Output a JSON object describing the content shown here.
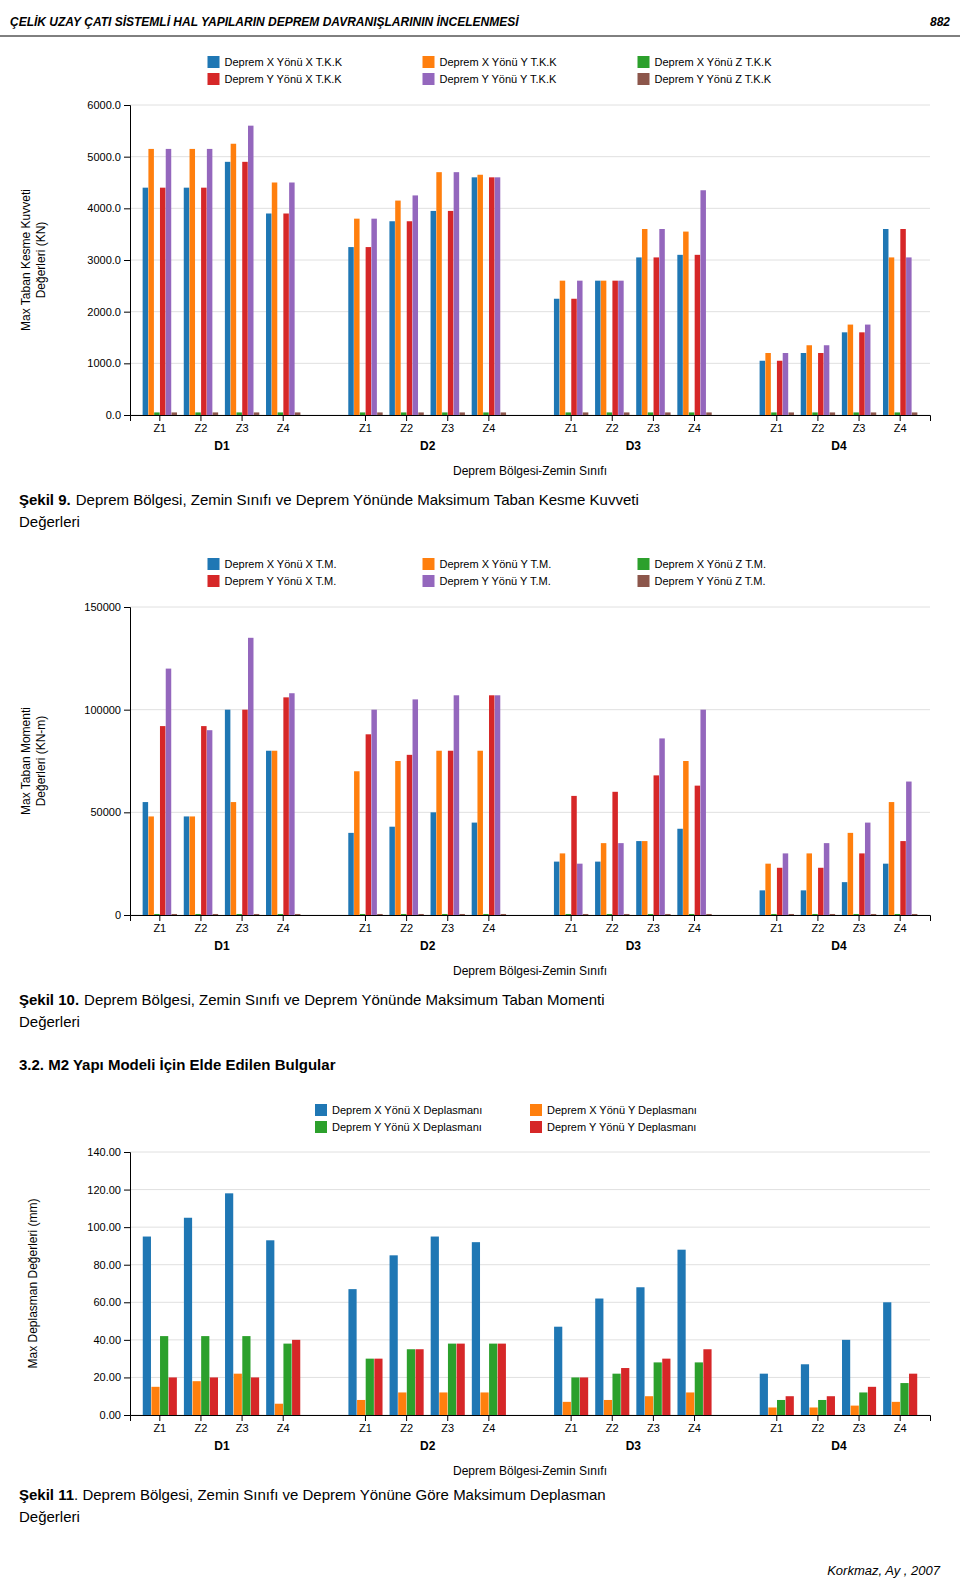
{
  "page_title": "ÇELİK UZAY ÇATI SİSTEMLİ HAL YAPILARIN DEPREM DAVRANIŞLARININ İNCELENMESİ",
  "page_number": "882",
  "section_heading": "3.2. M2 Yapı Modeli İçin Elde Edilen Bulgular",
  "footer": "Korkmaz, Ay , 2007",
  "chart_data": [
    {
      "type": "bar",
      "xlabel": "Deprem Bölgesi-Zemin Sınıfı",
      "ylabel": "Max Taban Kesme Kuvveti\nDeğerleri (KN)",
      "categories": [
        "Z1",
        "Z2",
        "Z3",
        "Z4",
        "Z1",
        "Z2",
        "Z3",
        "Z4",
        "Z1",
        "Z2",
        "Z3",
        "Z4",
        "Z1",
        "Z2",
        "Z3",
        "Z4"
      ],
      "groups": [
        "D1",
        "D2",
        "D3",
        "D4"
      ],
      "series": [
        {
          "name": "Deprem X Yönü X T.K.K",
          "values": [
            4400,
            4400,
            4900,
            3900,
            3250,
            3750,
            3950,
            4600,
            2250,
            2600,
            3050,
            3100,
            1050,
            1200,
            1600,
            3600
          ]
        },
        {
          "name": "Deprem X Yönü Y T.K.K",
          "values": [
            5150,
            5150,
            5250,
            4500,
            3800,
            4150,
            4700,
            4650,
            2600,
            2600,
            3600,
            3550,
            1200,
            1350,
            1750,
            3050
          ]
        },
        {
          "name": "Deprem X Yönü Z T.K.K",
          "values": [
            50,
            50,
            50,
            50,
            50,
            50,
            50,
            50,
            50,
            50,
            50,
            50,
            50,
            50,
            50,
            50
          ]
        },
        {
          "name": "Deprem Y Yönü X T.K.K",
          "values": [
            4400,
            4400,
            4900,
            3900,
            3250,
            3750,
            3950,
            4600,
            2250,
            2600,
            3050,
            3100,
            1050,
            1200,
            1600,
            3600
          ]
        },
        {
          "name": "Deprem Y Yönü Y T.K.K",
          "values": [
            5150,
            5150,
            5600,
            4500,
            3800,
            4250,
            4700,
            4600,
            2600,
            2600,
            3600,
            4350,
            1200,
            1350,
            1750,
            3050
          ]
        },
        {
          "name": "Deprem Y Yönü Z T.K.K",
          "values": [
            50,
            50,
            50,
            50,
            50,
            50,
            50,
            50,
            50,
            50,
            50,
            50,
            50,
            50,
            50,
            50
          ]
        }
      ],
      "ylim": [
        0,
        6000
      ],
      "yticks": [
        {
          "value": 0,
          "label": "0.0"
        },
        {
          "value": 1000,
          "label": "1000.0"
        },
        {
          "value": 2000,
          "label": "2000.0"
        },
        {
          "value": 3000,
          "label": "3000.0"
        },
        {
          "value": 4000,
          "label": "4000.0"
        },
        {
          "value": 5000,
          "label": "5000.0"
        },
        {
          "value": 6000,
          "label": "6000.0"
        }
      ],
      "grid": true,
      "legend": "top",
      "caption": {
        "bold": "Şekil 9.",
        "text": "Deprem Bölgesi, Zemin Sınıfı ve Deprem Yönünde Maksimum Taban Kesme Kuvveti",
        "line2": "Değerleri"
      }
    },
    {
      "type": "bar",
      "xlabel": "Deprem Bölgesi-Zemin Sınıfı",
      "ylabel": "Max Taban Momenti\nDeğerleri (KN-m)",
      "categories": [
        "Z1",
        "Z2",
        "Z3",
        "Z4",
        "Z1",
        "Z2",
        "Z3",
        "Z4",
        "Z1",
        "Z2",
        "Z3",
        "Z4",
        "Z1",
        "Z2",
        "Z3",
        "Z4"
      ],
      "groups": [
        "D1",
        "D2",
        "D3",
        "D4"
      ],
      "series": [
        {
          "name": "Deprem X Yönü X T.M.",
          "values": [
            55000,
            48000,
            100000,
            80000,
            40000,
            43000,
            50000,
            45000,
            26000,
            26000,
            36000,
            42000,
            12000,
            12000,
            16000,
            25000
          ]
        },
        {
          "name": "Deprem X Yönü Y T.M.",
          "values": [
            48000,
            48000,
            55000,
            80000,
            70000,
            75000,
            80000,
            80000,
            30000,
            35000,
            36000,
            75000,
            25000,
            30000,
            40000,
            55000
          ]
        },
        {
          "name": "Deprem X Yönü Z T.M.",
          "values": [
            500,
            500,
            500,
            500,
            500,
            500,
            500,
            500,
            500,
            500,
            500,
            500,
            500,
            500,
            500,
            500
          ]
        },
        {
          "name": "Deprem Y Yönü X T.M.",
          "values": [
            92000,
            92000,
            100000,
            106000,
            88000,
            78000,
            80000,
            107000,
            58000,
            60000,
            68000,
            63000,
            23000,
            23000,
            30000,
            36000
          ]
        },
        {
          "name": "Deprem Y Yönü Y T.M.",
          "values": [
            120000,
            90000,
            135000,
            108000,
            100000,
            105000,
            107000,
            107000,
            25000,
            35000,
            86000,
            100000,
            30000,
            35000,
            45000,
            65000
          ]
        },
        {
          "name": "Deprem Y Yönü Z T.M.",
          "values": [
            500,
            500,
            500,
            500,
            500,
            500,
            500,
            500,
            500,
            500,
            500,
            500,
            500,
            500,
            500,
            500
          ]
        }
      ],
      "ylim": [
        0,
        150000
      ],
      "yticks": [
        0,
        50000,
        100000,
        150000
      ],
      "grid": true,
      "legend": "top",
      "caption": {
        "bold": "Şekil 10.",
        "text": "Deprem Bölgesi, Zemin Sınıfı ve Deprem Yönünde Maksimum Taban Momenti",
        "line2": "Değerleri"
      }
    },
    {
      "type": "bar",
      "xlabel": "Deprem Bölgesi-Zemin Sınıfı",
      "ylabel": "Max Deplasman Değerleri (mm)",
      "categories": [
        "Z1",
        "Z2",
        "Z3",
        "Z4",
        "Z1",
        "Z2",
        "Z3",
        "Z4",
        "Z1",
        "Z2",
        "Z3",
        "Z4",
        "Z1",
        "Z2",
        "Z3",
        "Z4"
      ],
      "groups": [
        "D1",
        "D2",
        "D3",
        "D4"
      ],
      "series": [
        {
          "name": "Deprem X Yönü X Deplasmanı",
          "values": [
            95,
            105,
            118,
            93,
            67,
            85,
            95,
            92,
            47,
            62,
            68,
            88,
            22,
            27,
            40,
            60
          ]
        },
        {
          "name": "Deprem X Yönü Y Deplasmanı",
          "values": [
            15,
            18,
            22,
            6,
            8,
            12,
            12,
            12,
            7,
            8,
            10,
            12,
            4,
            4,
            5,
            7
          ]
        },
        {
          "name": "Deprem Y Yönü X Deplasmanı",
          "values": [
            42,
            42,
            42,
            38,
            30,
            35,
            38,
            38,
            20,
            22,
            28,
            28,
            8,
            8,
            12,
            17
          ]
        },
        {
          "name": "Deprem Y Yönü Y Deplasmanı",
          "values": [
            20,
            20,
            20,
            40,
            30,
            35,
            38,
            38,
            20,
            25,
            30,
            35,
            10,
            10,
            15,
            22
          ]
        }
      ],
      "ylim": [
        0,
        140
      ],
      "yticks": [
        {
          "value": 0,
          "label": "0.00"
        },
        {
          "value": 20,
          "label": "20.00"
        },
        {
          "value": 40,
          "label": "40.00"
        },
        {
          "value": 60,
          "label": "60.00"
        },
        {
          "value": 80,
          "label": "80.00"
        },
        {
          "value": 100,
          "label": "100.00"
        },
        {
          "value": 120,
          "label": "120.00"
        },
        {
          "value": 140,
          "label": "140.00"
        }
      ],
      "grid": true,
      "legend": "top",
      "caption": {
        "bold": "Şekil 11",
        "text": ". Deprem Bölgesi, Zemin Sınıfı ve Deprem Yönüne Göre Maksimum Deplasman",
        "line2": "Değerleri"
      }
    }
  ]
}
